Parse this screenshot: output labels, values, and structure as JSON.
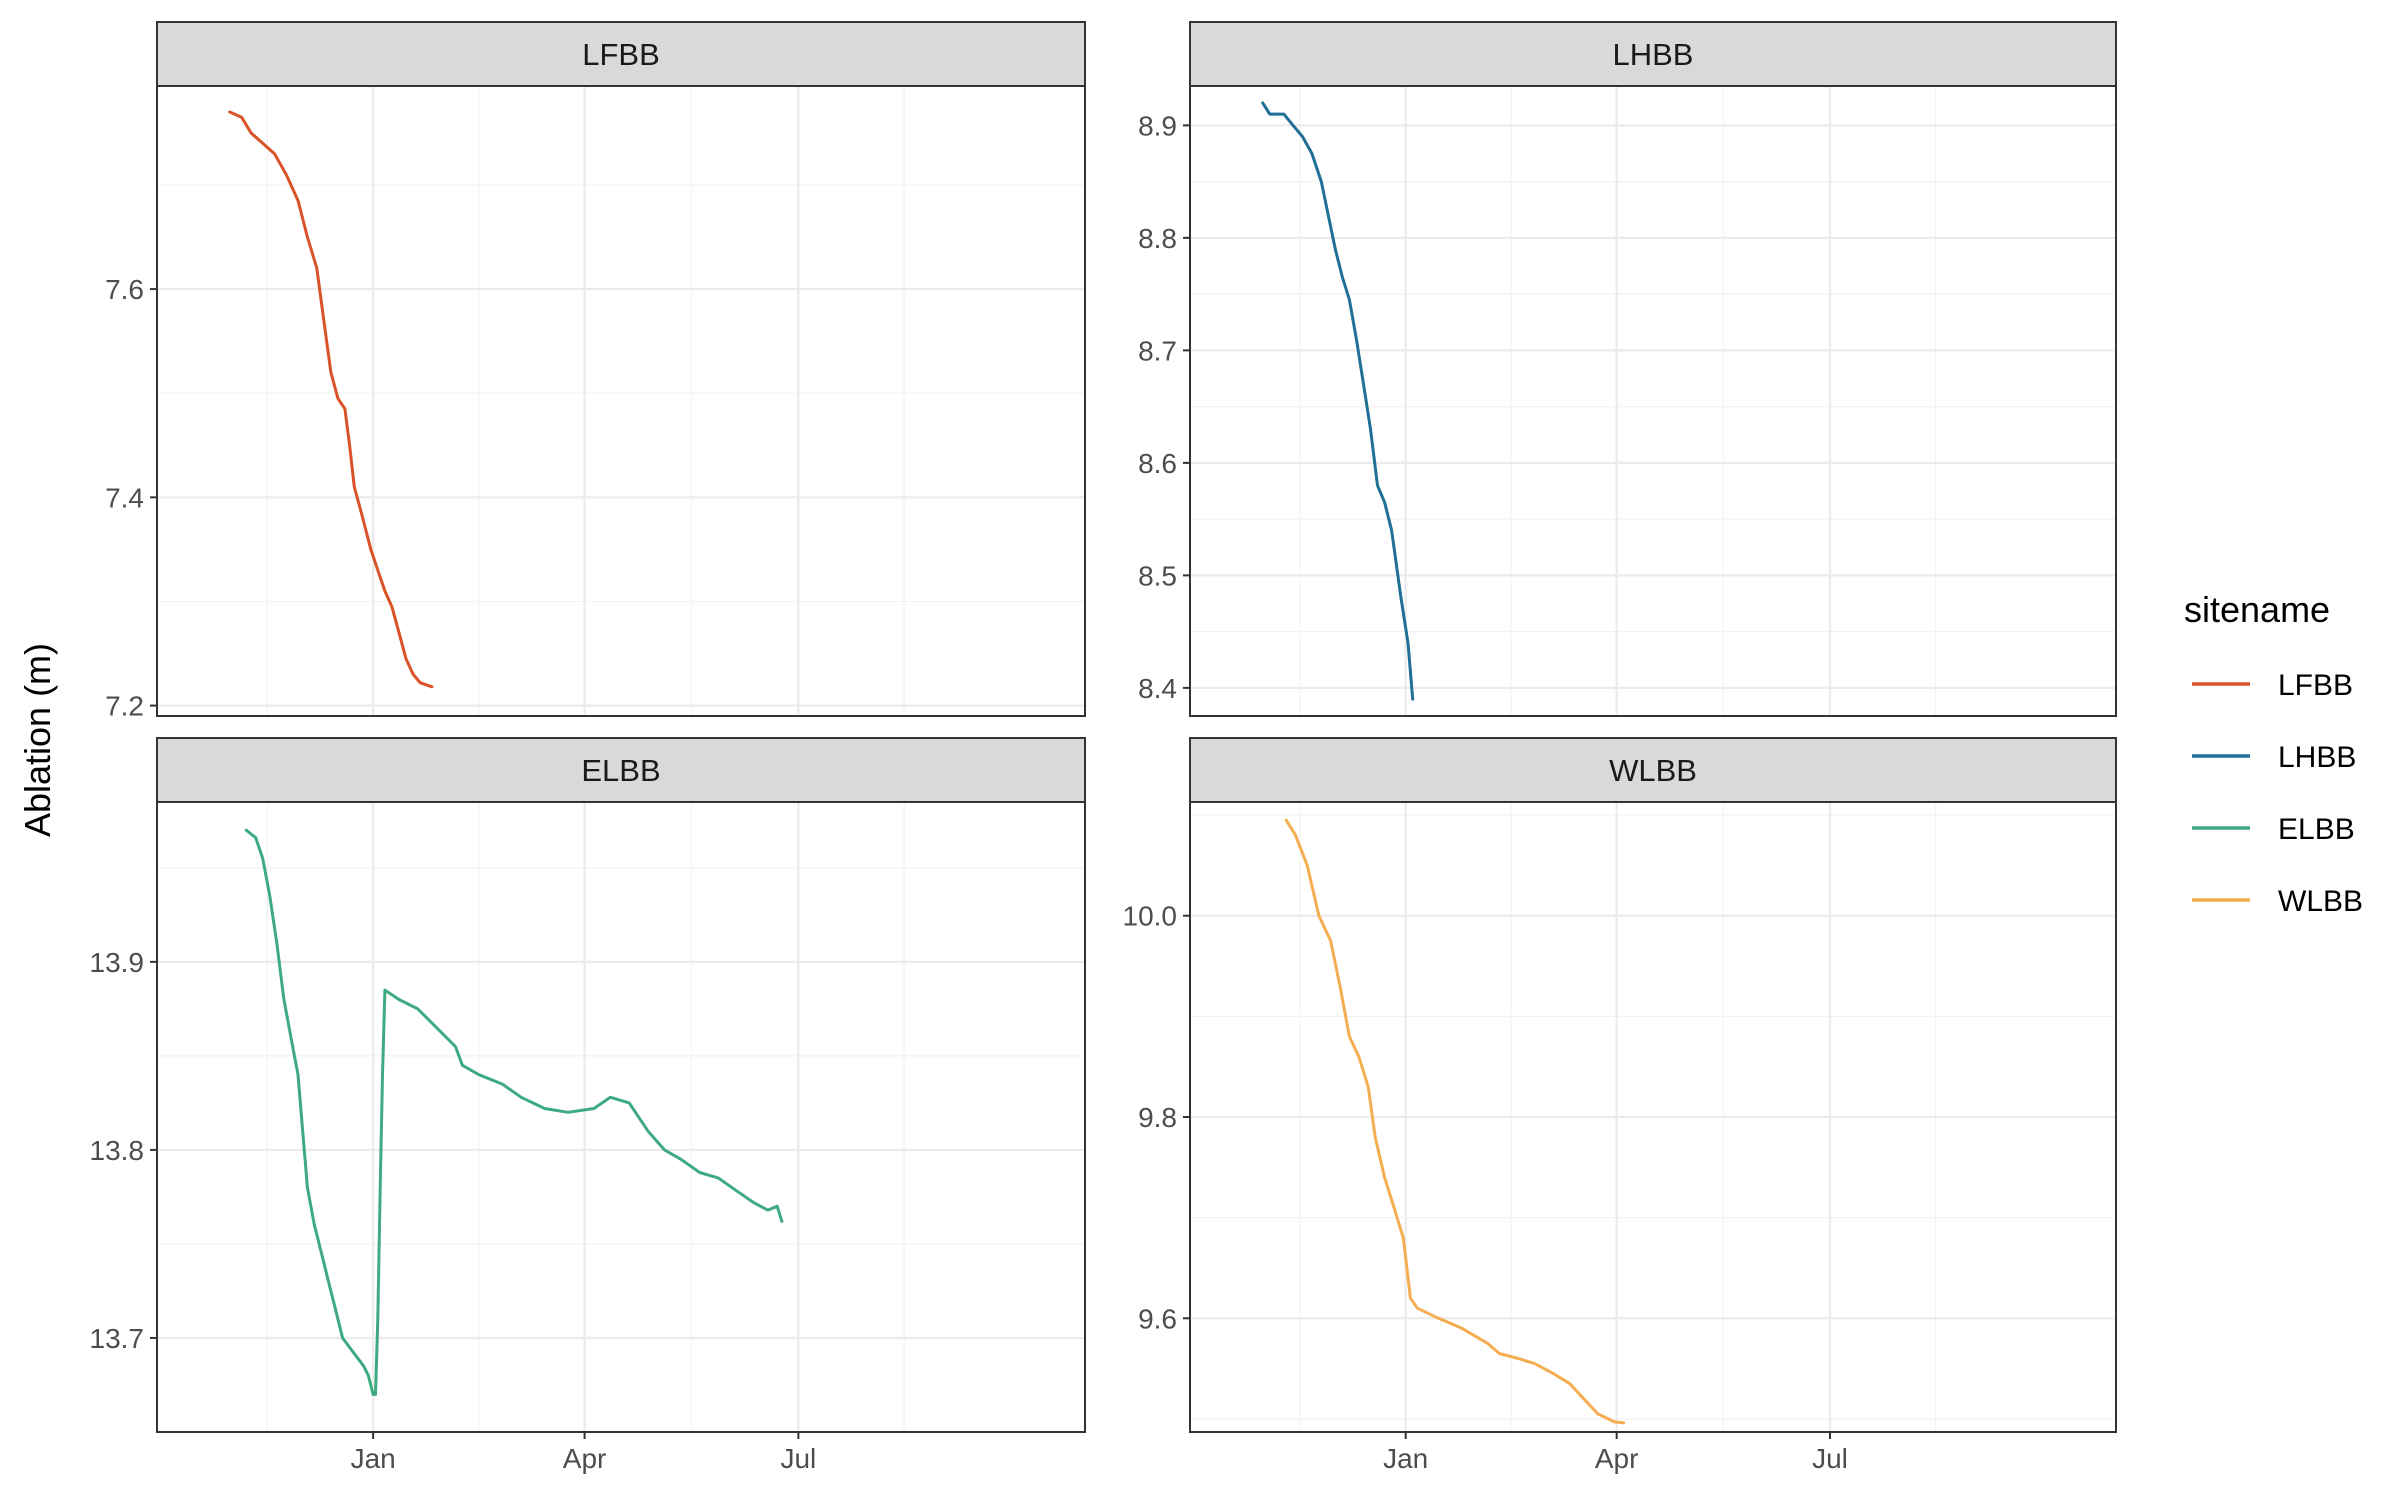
{
  "chart_data": {
    "type": "line",
    "facet_layout": "2x2",
    "ylabel": "Ablation (m)",
    "x_scale": "date",
    "x_ticks": [
      "Jan",
      "Apr",
      "Jul"
    ],
    "x_tick_dates": [
      "2023-01-01",
      "2023-04-01",
      "2023-07-01"
    ],
    "xlim": [
      "2022-10-01",
      "2023-10-31"
    ],
    "grid": true,
    "legend": {
      "title": "sitename",
      "position": "right",
      "entries": [
        "LFBB",
        "LHBB",
        "ELBB",
        "WLBB"
      ]
    },
    "colors": {
      "LFBB": "#D95228",
      "LHBB": "#1F6F96",
      "ELBB": "#3DAA80",
      "WLBB": "#F5AD52"
    },
    "panels": [
      {
        "name": "LFBB",
        "ylim": [
          7.19,
          7.795
        ],
        "y_ticks": [
          7.2,
          7.4,
          7.6
        ],
        "y_tick_labels": [
          "7.2",
          "7.4",
          "7.6"
        ],
        "series": [
          {
            "name": "LFBB",
            "points": [
              [
                "2022-11-01",
                7.77
              ],
              [
                "2022-11-06",
                7.765
              ],
              [
                "2022-11-10",
                7.75
              ],
              [
                "2022-11-15",
                7.74
              ],
              [
                "2022-11-20",
                7.73
              ],
              [
                "2022-11-25",
                7.71
              ],
              [
                "2022-11-30",
                7.685
              ],
              [
                "2022-12-04",
                7.65
              ],
              [
                "2022-12-08",
                7.62
              ],
              [
                "2022-12-11",
                7.57
              ],
              [
                "2022-12-14",
                7.52
              ],
              [
                "2022-12-17",
                7.495
              ],
              [
                "2022-12-20",
                7.485
              ],
              [
                "2022-12-22",
                7.45
              ],
              [
                "2022-12-24",
                7.41
              ],
              [
                "2022-12-27",
                7.385
              ],
              [
                "2022-12-31",
                7.35
              ],
              [
                "2023-01-03",
                7.33
              ],
              [
                "2023-01-06",
                7.31
              ],
              [
                "2023-01-09",
                7.295
              ],
              [
                "2023-01-12",
                7.27
              ],
              [
                "2023-01-15",
                7.245
              ],
              [
                "2023-01-18",
                7.23
              ],
              [
                "2023-01-21",
                7.222
              ],
              [
                "2023-01-26",
                7.218
              ]
            ]
          }
        ]
      },
      {
        "name": "LHBB",
        "ylim": [
          8.375,
          8.935
        ],
        "y_ticks": [
          8.4,
          8.5,
          8.6,
          8.7,
          8.8,
          8.9
        ],
        "y_tick_labels": [
          "8.4",
          "8.5",
          "8.6",
          "8.7",
          "8.8",
          "8.9"
        ],
        "series": [
          {
            "name": "LHBB",
            "points": [
              [
                "2022-11-01",
                8.92
              ],
              [
                "2022-11-04",
                8.91
              ],
              [
                "2022-11-10",
                8.91
              ],
              [
                "2022-11-14",
                8.9
              ],
              [
                "2022-11-18",
                8.89
              ],
              [
                "2022-11-22",
                8.875
              ],
              [
                "2022-11-26",
                8.85
              ],
              [
                "2022-11-29",
                8.82
              ],
              [
                "2022-12-02",
                8.79
              ],
              [
                "2022-12-05",
                8.765
              ],
              [
                "2022-12-08",
                8.745
              ],
              [
                "2022-12-11",
                8.71
              ],
              [
                "2022-12-14",
                8.67
              ],
              [
                "2022-12-17",
                8.63
              ],
              [
                "2022-12-20",
                8.58
              ],
              [
                "2022-12-23",
                8.565
              ],
              [
                "2022-12-26",
                8.54
              ],
              [
                "2022-12-28",
                8.51
              ],
              [
                "2022-12-30",
                8.48
              ],
              [
                "2023-01-02",
                8.44
              ],
              [
                "2023-01-04",
                8.39
              ]
            ]
          }
        ]
      },
      {
        "name": "ELBB",
        "ylim": [
          13.65,
          13.985
        ],
        "y_ticks": [
          13.7,
          13.8,
          13.9
        ],
        "y_tick_labels": [
          "13.7",
          "13.8",
          "13.9"
        ],
        "series": [
          {
            "name": "ELBB",
            "points": [
              [
                "2022-11-08",
                13.97
              ],
              [
                "2022-11-12",
                13.966
              ],
              [
                "2022-11-15",
                13.955
              ],
              [
                "2022-11-18",
                13.935
              ],
              [
                "2022-11-21",
                13.91
              ],
              [
                "2022-11-24",
                13.88
              ],
              [
                "2022-11-27",
                13.86
              ],
              [
                "2022-11-30",
                13.84
              ],
              [
                "2022-12-02",
                13.81
              ],
              [
                "2022-12-04",
                13.78
              ],
              [
                "2022-12-07",
                13.76
              ],
              [
                "2022-12-10",
                13.745
              ],
              [
                "2022-12-13",
                13.73
              ],
              [
                "2022-12-16",
                13.715
              ],
              [
                "2022-12-19",
                13.7
              ],
              [
                "2022-12-22",
                13.695
              ],
              [
                "2022-12-25",
                13.69
              ],
              [
                "2022-12-28",
                13.685
              ],
              [
                "2022-12-30",
                13.68
              ],
              [
                "2023-01-01",
                13.67
              ],
              [
                "2023-01-02",
                13.67
              ],
              [
                "2023-01-03",
                13.71
              ],
              [
                "2023-01-04",
                13.78
              ],
              [
                "2023-01-05",
                13.84
              ],
              [
                "2023-01-06",
                13.885
              ],
              [
                "2023-01-12",
                13.88
              ],
              [
                "2023-01-20",
                13.875
              ],
              [
                "2023-01-28",
                13.865
              ],
              [
                "2023-02-05",
                13.855
              ],
              [
                "2023-02-08",
                13.845
              ],
              [
                "2023-02-15",
                13.84
              ],
              [
                "2023-02-25",
                13.835
              ],
              [
                "2023-03-05",
                13.828
              ],
              [
                "2023-03-15",
                13.822
              ],
              [
                "2023-03-25",
                13.82
              ],
              [
                "2023-04-05",
                13.822
              ],
              [
                "2023-04-12",
                13.828
              ],
              [
                "2023-04-20",
                13.825
              ],
              [
                "2023-04-28",
                13.81
              ],
              [
                "2023-05-05",
                13.8
              ],
              [
                "2023-05-12",
                13.795
              ],
              [
                "2023-05-20",
                13.788
              ],
              [
                "2023-05-28",
                13.785
              ],
              [
                "2023-06-05",
                13.778
              ],
              [
                "2023-06-12",
                13.772
              ],
              [
                "2023-06-18",
                13.768
              ],
              [
                "2023-06-22",
                13.77
              ],
              [
                "2023-06-24",
                13.762
              ]
            ]
          }
        ]
      },
      {
        "name": "WLBB",
        "ylim": [
          9.487,
          10.113
        ],
        "y_ticks": [
          9.6,
          9.8,
          10.0
        ],
        "y_tick_labels": [
          "9.6",
          "9.8",
          "10.0"
        ],
        "series": [
          {
            "name": "WLBB",
            "points": [
              [
                "2022-11-11",
                10.095
              ],
              [
                "2022-11-15",
                10.08
              ],
              [
                "2022-11-20",
                10.05
              ],
              [
                "2022-11-25",
                10.0
              ],
              [
                "2022-11-30",
                9.975
              ],
              [
                "2022-12-04",
                9.93
              ],
              [
                "2022-12-08",
                9.88
              ],
              [
                "2022-12-12",
                9.86
              ],
              [
                "2022-12-16",
                9.83
              ],
              [
                "2022-12-19",
                9.78
              ],
              [
                "2022-12-23",
                9.74
              ],
              [
                "2022-12-27",
                9.71
              ],
              [
                "2022-12-31",
                9.68
              ],
              [
                "2023-01-03",
                9.62
              ],
              [
                "2023-01-06",
                9.61
              ],
              [
                "2023-01-15",
                9.6
              ],
              [
                "2023-01-25",
                9.59
              ],
              [
                "2023-02-05",
                9.575
              ],
              [
                "2023-02-10",
                9.565
              ],
              [
                "2023-02-18",
                9.56
              ],
              [
                "2023-02-25",
                9.555
              ],
              [
                "2023-03-05",
                9.545
              ],
              [
                "2023-03-12",
                9.535
              ],
              [
                "2023-03-18",
                9.52
              ],
              [
                "2023-03-24",
                9.505
              ],
              [
                "2023-03-31",
                9.497
              ],
              [
                "2023-04-04",
                9.496
              ]
            ]
          }
        ]
      }
    ]
  }
}
